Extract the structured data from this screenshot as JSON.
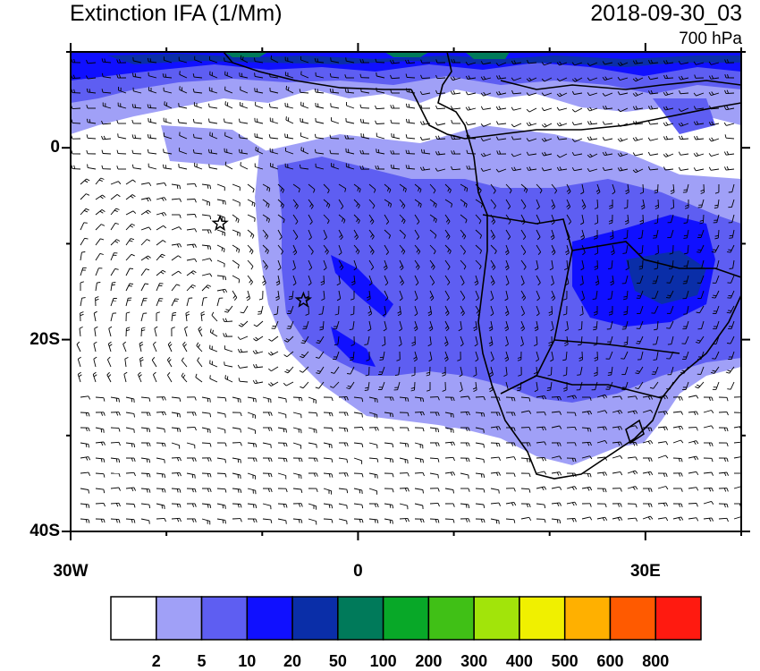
{
  "header": {
    "title": "Extinction IFA (1/Mm)",
    "datetime": "2018-09-30_03",
    "level": "700 hPa"
  },
  "axes": {
    "x_ticks": [
      {
        "label": "30W",
        "lon": -30
      },
      {
        "label": "0",
        "lon": 0
      },
      {
        "label": "30E",
        "lon": 30
      }
    ],
    "y_ticks": [
      {
        "label": "0",
        "lat": 0
      },
      {
        "label": "20S",
        "lat": -20
      },
      {
        "label": "40S",
        "lat": -40
      }
    ],
    "lon_range": [
      -30,
      40
    ],
    "lat_range": [
      -40,
      10
    ]
  },
  "markers": [
    {
      "symbol": "star",
      "lon": -14.4,
      "lat": -7.9
    },
    {
      "symbol": "star",
      "lon": -5.7,
      "lat": -15.9
    }
  ],
  "colorbar": {
    "labels": [
      "2",
      "5",
      "10",
      "20",
      "50",
      "100",
      "200",
      "300",
      "400",
      "500",
      "600",
      "800"
    ],
    "colors": [
      "#ffffff",
      "#a0a0f7",
      "#5e5ef2",
      "#1010ff",
      "#0a2ea8",
      "#007a5a",
      "#08a828",
      "#40c016",
      "#a2e40a",
      "#f0f000",
      "#ffb000",
      "#ff5a00",
      "#ff1a10"
    ]
  }
}
